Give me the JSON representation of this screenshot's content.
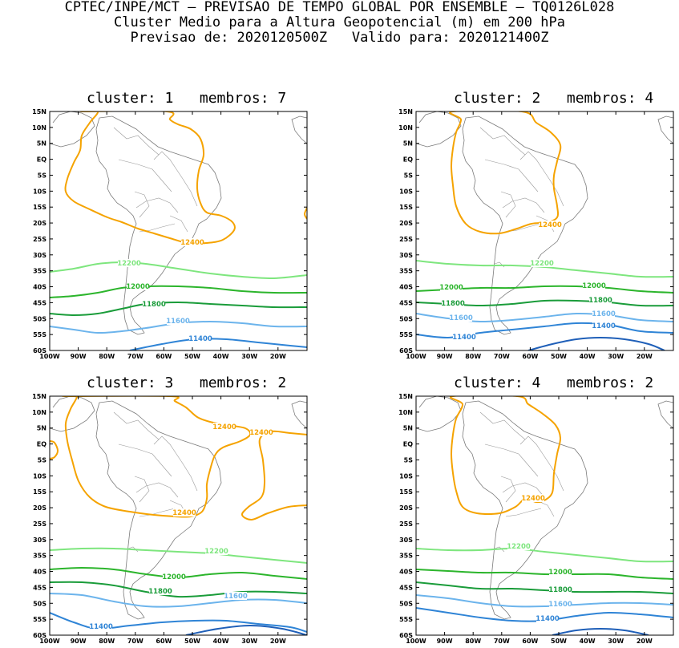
{
  "header": {
    "line1": "CPTEC/INPE/MCT — PREVISAO DE TEMPO GLOBAL POR ENSEMBLE — TQ0126L028",
    "line2": "Cluster Medio para a Altura Geopotencial (m) em 200 hPa",
    "line3": "Previsao de: 2020120500Z   Valido para: 2020121400Z"
  },
  "lat_labels": [
    "15N",
    "10N",
    "5N",
    "EQ",
    "5S",
    "10S",
    "15S",
    "20S",
    "25S",
    "30S",
    "35S",
    "40S",
    "45S",
    "50S",
    "55S",
    "60S"
  ],
  "lon_labels": [
    "100W",
    "90W",
    "80W",
    "70W",
    "60W",
    "50W",
    "40W",
    "30W",
    "20W"
  ],
  "colors": {
    "c12400": "#f5a300",
    "c12200": "#7ee67e",
    "c12000": "#2cb52c",
    "c11800": "#1a9c3a",
    "c11600": "#6cb4ec",
    "c11400": "#2f84d6",
    "c11200": "#1f5fb8",
    "coast": "#7a7a7a"
  },
  "panels": [
    {
      "title": "cluster: 1   membros: 7",
      "labels": [
        "12400",
        "12200",
        "12000",
        "11800",
        "11600",
        "11400"
      ]
    },
    {
      "title": "cluster: 2   membros: 4",
      "labels": [
        "12400",
        "12200",
        "12000",
        "12000",
        "11800",
        "11800",
        "11600",
        "11600",
        "11400",
        "11400"
      ]
    },
    {
      "title": "cluster: 3   membros: 2",
      "labels": [
        "12400",
        "12400",
        "12400",
        "12200",
        "12000",
        "11800",
        "11600",
        "11400"
      ]
    },
    {
      "title": "cluster: 4   membros: 2",
      "labels": [
        "12400",
        "12200",
        "12000",
        "11800",
        "11600",
        "11400"
      ]
    }
  ]
}
